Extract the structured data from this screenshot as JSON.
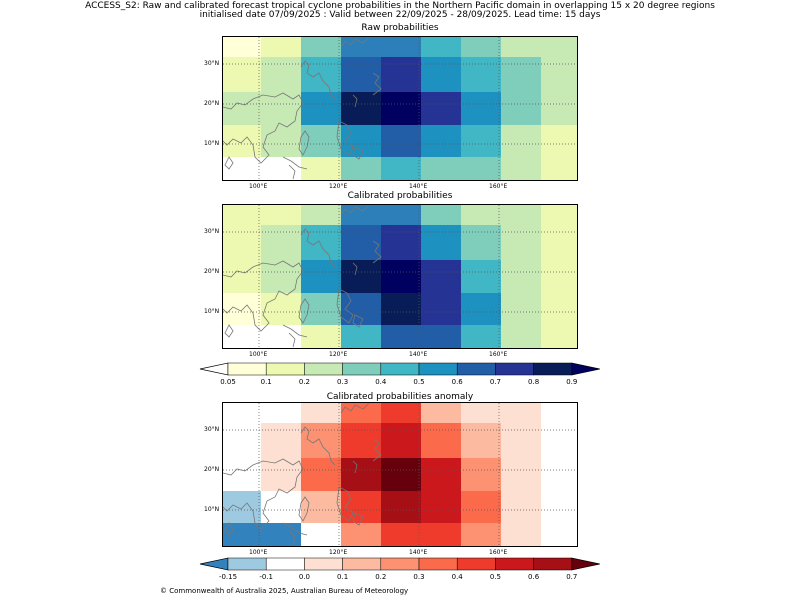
{
  "header": {
    "line1": "ACCESS_S2: Raw and calibrated forecast tropical cyclone probabilities in the Northern Pacific domain in overlapping 15 x 20 degree regions",
    "line2": "initialised date 07/09/2025 :  Valid between 22/09/2025 - 28/09/2025. Lead time: 15 days"
  },
  "panels": [
    {
      "title": "Raw probabilities",
      "rows": [
        [
          "#ffffd8",
          "#edf8b0",
          "#7fcdbb",
          "#2c7fb8",
          "#2c7fb8",
          "#41b6c4",
          "#7fcdbb",
          "#c7e9b4",
          "#c7e9b4"
        ],
        [
          "#edf8b0",
          "#c7e9b4",
          "#41b6c4",
          "#225ea8",
          "#253494",
          "#1d91c0",
          "#41b6c4",
          "#7fcdbb",
          "#c7e9b4"
        ],
        [
          "#c7e9b4",
          "#c7e9b4",
          "#1d91c0",
          "#081d58",
          "#000060",
          "#253494",
          "#1d91c0",
          "#7fcdbb",
          "#c7e9b4"
        ],
        [
          "#edf8b0",
          "#c7e9b4",
          "#7fcdbb",
          "#1d91c0",
          "#225ea8",
          "#1d91c0",
          "#41b6c4",
          "#c7e9b4",
          "#edf8b0"
        ],
        [
          "#ffffff",
          "#ffffff",
          "#edf8b0",
          "#7fcdbb",
          "#41b6c4",
          "#7fcdbb",
          "#7fcdbb",
          "#c7e9b4",
          "#edf8b0"
        ]
      ]
    },
    {
      "title": "Calibrated probabilities",
      "rows": [
        [
          "#edf8b0",
          "#edf8b0",
          "#c7e9b4",
          "#2c7fb8",
          "#2c7fb8",
          "#7fcdbb",
          "#c7e9b4",
          "#c7e9b4",
          "#edf8b0"
        ],
        [
          "#edf8b0",
          "#c7e9b4",
          "#41b6c4",
          "#225ea8",
          "#253494",
          "#1d91c0",
          "#7fcdbb",
          "#c7e9b4",
          "#edf8b0"
        ],
        [
          "#edf8b0",
          "#c7e9b4",
          "#1d91c0",
          "#081d58",
          "#000060",
          "#253494",
          "#41b6c4",
          "#c7e9b4",
          "#edf8b0"
        ],
        [
          "#ffffd8",
          "#edf8b0",
          "#7fcdbb",
          "#225ea8",
          "#081d58",
          "#253494",
          "#1d91c0",
          "#c7e9b4",
          "#edf8b0"
        ],
        [
          "#ffffff",
          "#ffffff",
          "#edf8b0",
          "#41b6c4",
          "#225ea8",
          "#225ea8",
          "#41b6c4",
          "#c7e9b4",
          "#edf8b0"
        ]
      ]
    },
    {
      "title": "Calibrated probabilities anomaly",
      "rows": [
        [
          "#ffffff",
          "#ffffff",
          "#fee0d2",
          "#fb6a4a",
          "#ef3b2c",
          "#fcbba1",
          "#fee0d2",
          "#fee0d2",
          "#ffffff"
        ],
        [
          "#ffffff",
          "#fee0d2",
          "#fc9272",
          "#ef3b2c",
          "#cb181d",
          "#fb6a4a",
          "#fcbba1",
          "#fee0d2",
          "#ffffff"
        ],
        [
          "#ffffff",
          "#fee0d2",
          "#fb6a4a",
          "#a50f15",
          "#67000d",
          "#cb181d",
          "#fc9272",
          "#fee0d2",
          "#ffffff"
        ],
        [
          "#9ecae1",
          "#ffffff",
          "#fcbba1",
          "#ef3b2c",
          "#a50f15",
          "#cb181d",
          "#fb6a4a",
          "#fee0d2",
          "#ffffff"
        ],
        [
          "#3182bd",
          "#3182bd",
          "#ffffff",
          "#fc9272",
          "#ef3b2c",
          "#ef3b2c",
          "#fc9272",
          "#fee0d2",
          "#ffffff"
        ]
      ]
    }
  ],
  "axis": {
    "lon_ticks": [
      "100°E",
      "120°E",
      "140°E",
      "160°E"
    ],
    "lat_ticks": [
      "30°N",
      "20°N",
      "10°N"
    ]
  },
  "colorbar_prob": {
    "colors": [
      "#ffffd8",
      "#edf8b0",
      "#c7e9b4",
      "#7fcdbb",
      "#41b6c4",
      "#1d91c0",
      "#225ea8",
      "#253494",
      "#081d58"
    ],
    "over_color": "#000060",
    "labels": [
      "0.05",
      "0.1",
      "0.2",
      "0.3",
      "0.4",
      "0.5",
      "0.6",
      "0.7",
      "0.8",
      "0.9"
    ]
  },
  "colorbar_anom": {
    "under_color": "#3182bd",
    "colors": [
      "#9ecae1",
      "#ffffff",
      "#fee0d2",
      "#fcbba1",
      "#fc9272",
      "#fb6a4a",
      "#ef3b2c",
      "#cb181d",
      "#a50f15"
    ],
    "over_color": "#67000d",
    "labels": [
      "-0.15",
      "-0.1",
      "0.0",
      "0.1",
      "0.2",
      "0.3",
      "0.4",
      "0.5",
      "0.6",
      "0.7"
    ]
  },
  "footer": "© Commonwealth of Australia 2025, Australian Bureau of Meteorology"
}
